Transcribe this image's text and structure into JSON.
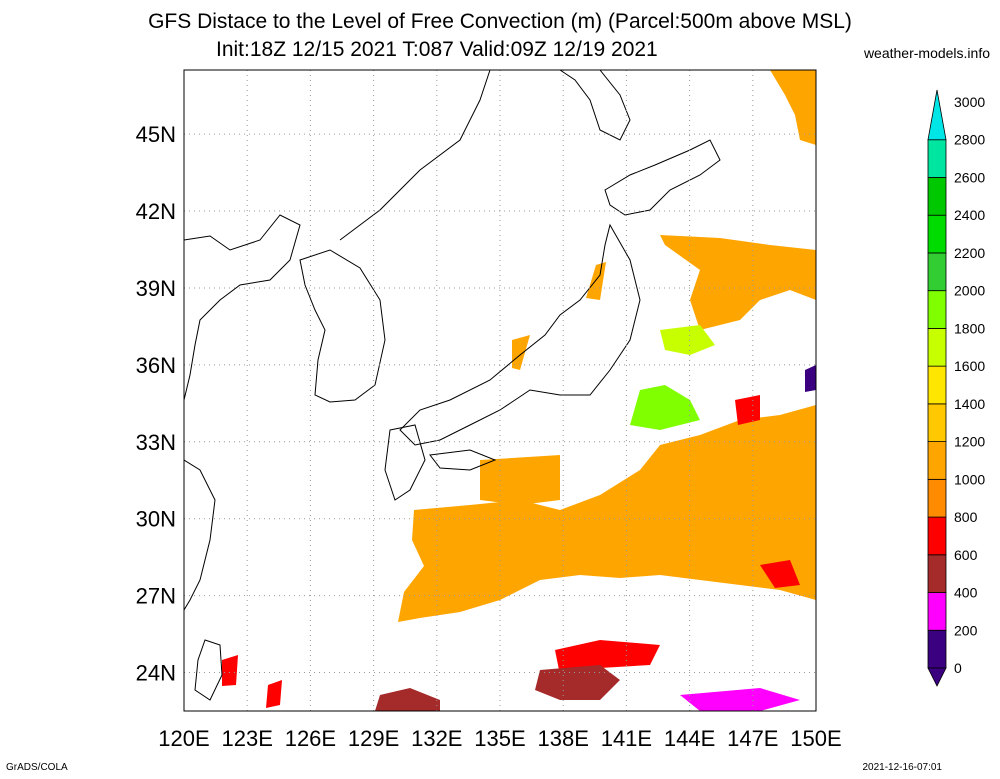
{
  "title_line1": "GFS Distace to the Level of Free Convection (m) (Parcel:500m above MSL)",
  "title_line2": "Init:18Z 12/15 2021 T:087 Valid:09Z 12/19 2021",
  "site": "weather-models.info",
  "footer_left": "GrADS/COLA",
  "footer_right": "2021-12-16-07:01",
  "map": {
    "lon_labels": [
      "120E",
      "123E",
      "126E",
      "129E",
      "132E",
      "135E",
      "138E",
      "141E",
      "144E",
      "147E",
      "150E"
    ],
    "lat_labels": [
      "24N",
      "27N",
      "30N",
      "33N",
      "36N",
      "39N",
      "42N",
      "45N"
    ],
    "lon_range": [
      120,
      150
    ],
    "lat_range": [
      22.5,
      47.5
    ],
    "grid": "dotted"
  },
  "legend": {
    "levels": [
      "0",
      "200",
      "400",
      "600",
      "800",
      "1000",
      "1200",
      "1400",
      "1600",
      "1800",
      "2000",
      "2200",
      "2400",
      "2600",
      "2800",
      "3000"
    ],
    "colors": [
      "#3a0080",
      "#ff00ff",
      "#a52a2a",
      "#ff0000",
      "#ff8c00",
      "#ffa500",
      "#ffc800",
      "#ffe600",
      "#c8ff00",
      "#7fff00",
      "#32cd32",
      "#00dc00",
      "#00c800",
      "#00e6a0",
      "#00e6e6"
    ]
  }
}
